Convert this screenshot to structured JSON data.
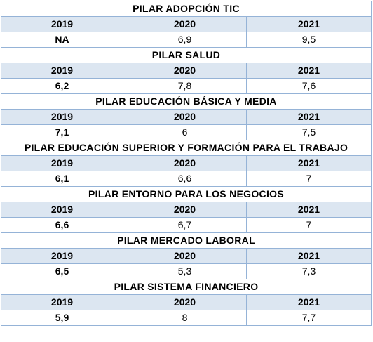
{
  "years": [
    "2019",
    "2020",
    "2021"
  ],
  "pillars": [
    {
      "title": "PILAR ADOPCIÓN TIC",
      "values": [
        "NA",
        "6,9",
        "9,5"
      ]
    },
    {
      "title": "PILAR SALUD",
      "values": [
        "6,2",
        "7,8",
        "7,6"
      ]
    },
    {
      "title": "PILAR EDUCACIÓN BÁSICA Y MEDIA",
      "values": [
        "7,1",
        "6",
        "7,5"
      ]
    },
    {
      "title": "PILAR EDUCACIÓN SUPERIOR Y FORMACIÓN PARA EL TRABAJO",
      "values": [
        "6,1",
        "6,6",
        "7"
      ]
    },
    {
      "title": "PILAR ENTORNO PARA LOS NEGOCIOS",
      "values": [
        "6,6",
        "6,7",
        "7"
      ]
    },
    {
      "title": "PILAR MERCADO LABORAL",
      "values": [
        "6,5",
        "5,3",
        "7,3"
      ]
    },
    {
      "title": "PILAR SISTEMA FINANCIERO",
      "values": [
        "5,9",
        "8",
        "7,7"
      ]
    }
  ],
  "colors": {
    "border": "#95b3d7",
    "header_fill": "#dce6f1"
  }
}
